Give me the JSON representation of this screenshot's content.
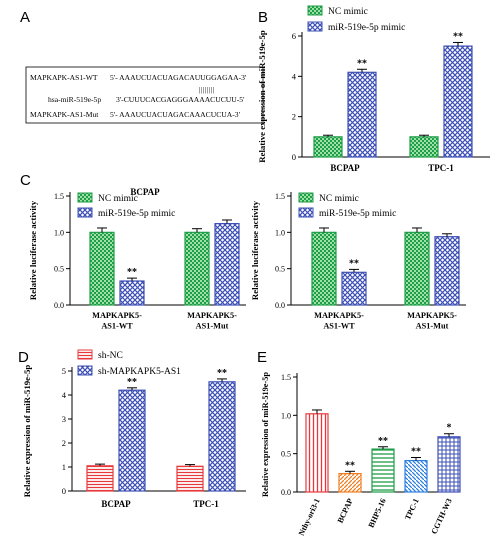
{
  "panels": {
    "A": "A",
    "B": "B",
    "C": "C",
    "D": "D",
    "E": "E"
  },
  "sequence_box": {
    "wt_label": "MAPKAPK-AS1-WT",
    "wt_seq": "5'- AAAUCUACUAGACAUUGGAGAA-3'",
    "bars": "||||||||",
    "mir_label": "hsa-miR-519e-5p",
    "mir_seq": "3'-CUUUCACGAGGGAAAACUCUU-5'",
    "mut_label": "MAPKAPK-AS1-Mut",
    "mut_seq": "5'- AAAUCUACUAGACAAACUCUA-3'"
  },
  "colors": {
    "nc": "#1f9e48",
    "mimic": "#3c4fb5",
    "sh_nc": "#e8383b",
    "sh_as1": "#3c4fb5",
    "e_bars": [
      "#e8383b",
      "#f07d22",
      "#1f9e48",
      "#2d7fe0",
      "#3c4fb5"
    ]
  },
  "chart_data": [
    {
      "id": "B",
      "type": "bar",
      "ylabel": "Relative expression of miR-519e-5p",
      "categories": [
        "BCPAP",
        "TPC-1"
      ],
      "ylim": [
        0,
        6
      ],
      "yticks": [
        0,
        2,
        4,
        6
      ],
      "series": [
        {
          "name": "NC mimic",
          "values": [
            1.0,
            1.0
          ],
          "errors": [
            0.08,
            0.08
          ]
        },
        {
          "name": "miR-519e-5p mimic",
          "values": [
            4.2,
            5.5
          ],
          "errors": [
            0.15,
            0.18
          ]
        }
      ],
      "annotations": [
        "**",
        "**"
      ]
    },
    {
      "id": "C1",
      "type": "bar",
      "title": "BCPAP",
      "ylabel": "Relative luciferase activity",
      "categories": [
        "MAPKAPK5-AS1-WT",
        "MAPKAPK5-AS1-Mut"
      ],
      "ylim": [
        0,
        1.5
      ],
      "yticks": [
        0.0,
        0.5,
        1.0,
        1.5
      ],
      "series": [
        {
          "name": "NC mimic",
          "values": [
            1.0,
            1.0
          ],
          "errors": [
            0.06,
            0.05
          ]
        },
        {
          "name": "miR-519e-5p mimic",
          "values": [
            0.33,
            1.12
          ],
          "errors": [
            0.04,
            0.05
          ]
        }
      ],
      "annotations": [
        "**",
        ""
      ]
    },
    {
      "id": "C2",
      "type": "bar",
      "ylabel": "Relative luciferase activity",
      "categories": [
        "MAPKAPK5-AS1-WT",
        "MAPKAPK5-AS1-Mut"
      ],
      "ylim": [
        0,
        1.5
      ],
      "yticks": [
        0.0,
        0.5,
        1.0,
        1.5
      ],
      "series": [
        {
          "name": "NC mimic",
          "values": [
            1.0,
            1.0
          ],
          "errors": [
            0.06,
            0.06
          ]
        },
        {
          "name": "miR-519e-5p mimic",
          "values": [
            0.45,
            0.94
          ],
          "errors": [
            0.04,
            0.04
          ]
        }
      ],
      "annotations": [
        "**",
        ""
      ]
    },
    {
      "id": "D",
      "type": "bar",
      "ylabel": "Relative expression of miR-519e-5p",
      "categories": [
        "BCPAP",
        "TPC-1"
      ],
      "ylim": [
        0,
        5
      ],
      "yticks": [
        0,
        1,
        2,
        3,
        4,
        5
      ],
      "series": [
        {
          "name": "sh-NC",
          "values": [
            1.05,
            1.03
          ],
          "errors": [
            0.07,
            0.07
          ]
        },
        {
          "name": "sh-MAPKAPK5-AS1",
          "values": [
            4.2,
            4.55
          ],
          "errors": [
            0.1,
            0.12
          ]
        }
      ],
      "annotations": [
        "**",
        "**"
      ]
    },
    {
      "id": "E",
      "type": "bar",
      "ylabel": "Relative expression of miR-519e-5p",
      "categories": [
        "Nthy-ori3-1",
        "BCPAP",
        "BHP5-16",
        "TPC-1",
        "CGTH-W3"
      ],
      "ylim": [
        0,
        1.5
      ],
      "yticks": [
        0.0,
        0.5,
        1.0,
        1.5
      ],
      "series": [
        {
          "values": [
            1.02,
            0.24,
            0.56,
            0.41,
            0.72
          ],
          "errors": [
            0.05,
            0.03,
            0.03,
            0.04,
            0.04
          ]
        }
      ],
      "annotations": [
        "",
        "**",
        "**",
        "**",
        "*"
      ]
    }
  ]
}
